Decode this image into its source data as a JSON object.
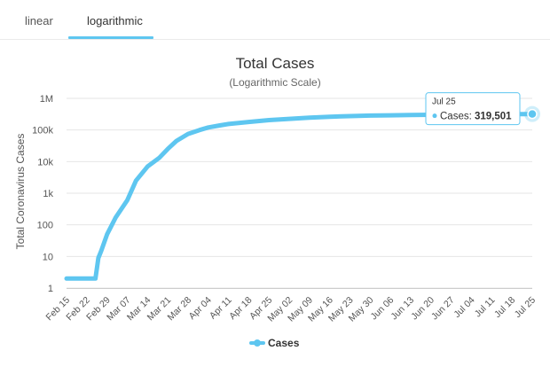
{
  "tabs": {
    "linear": "linear",
    "logarithmic": "logarithmic",
    "active": "logarithmic"
  },
  "tooltip": {
    "date": "Jul 25",
    "series": "Cases",
    "value": "319,501"
  },
  "colors": {
    "series": "#5ec6f0",
    "grid": "#e6e6e6",
    "accent": "#5ec6f0"
  },
  "chart_data": {
    "type": "line",
    "title": "Total Cases",
    "subtitle": "(Logarithmic Scale)",
    "ylabel": "Total Coronavirus Cases",
    "xlabel": "",
    "y_scale": "log",
    "ylim": [
      1,
      1000000
    ],
    "y_ticks": [
      "1",
      "10",
      "100",
      "1k",
      "10k",
      "100k",
      "1M"
    ],
    "x_ticks": [
      "Feb 15",
      "Feb 22",
      "Feb 29",
      "Mar 07",
      "Mar 14",
      "Mar 21",
      "Mar 28",
      "Apr 04",
      "Apr 11",
      "Apr 18",
      "Apr 25",
      "May 02",
      "May 09",
      "May 16",
      "May 23",
      "May 30",
      "Jun 06",
      "Jun 13",
      "Jun 20",
      "Jun 27",
      "Jul 04",
      "Jul 11",
      "Jul 18",
      "Jul 25"
    ],
    "grid": true,
    "legend_position": "bottom-center",
    "series": [
      {
        "name": "Cases",
        "x": [
          "Feb 15",
          "Feb 22",
          "Feb 25",
          "Feb 26",
          "Feb 27",
          "Feb 29",
          "Mar 03",
          "Mar 07",
          "Mar 10",
          "Mar 14",
          "Mar 18",
          "Mar 21",
          "Mar 24",
          "Mar 28",
          "Apr 01",
          "Apr 04",
          "Apr 08",
          "Apr 11",
          "Apr 18",
          "Apr 25",
          "May 02",
          "May 09",
          "May 16",
          "May 23",
          "May 30",
          "Jun 06",
          "Jun 13",
          "Jun 20",
          "Jun 27",
          "Jul 04",
          "Jul 11",
          "Jul 18",
          "Jul 25"
        ],
        "y": [
          2,
          2,
          2,
          9,
          15,
          50,
          170,
          600,
          2500,
          7000,
          13000,
          25000,
          45000,
          75000,
          100000,
          120000,
          140000,
          155000,
          180000,
          205000,
          225000,
          245000,
          262000,
          275000,
          285000,
          292000,
          298000,
          303000,
          307000,
          311000,
          314000,
          317000,
          319501
        ]
      }
    ]
  }
}
